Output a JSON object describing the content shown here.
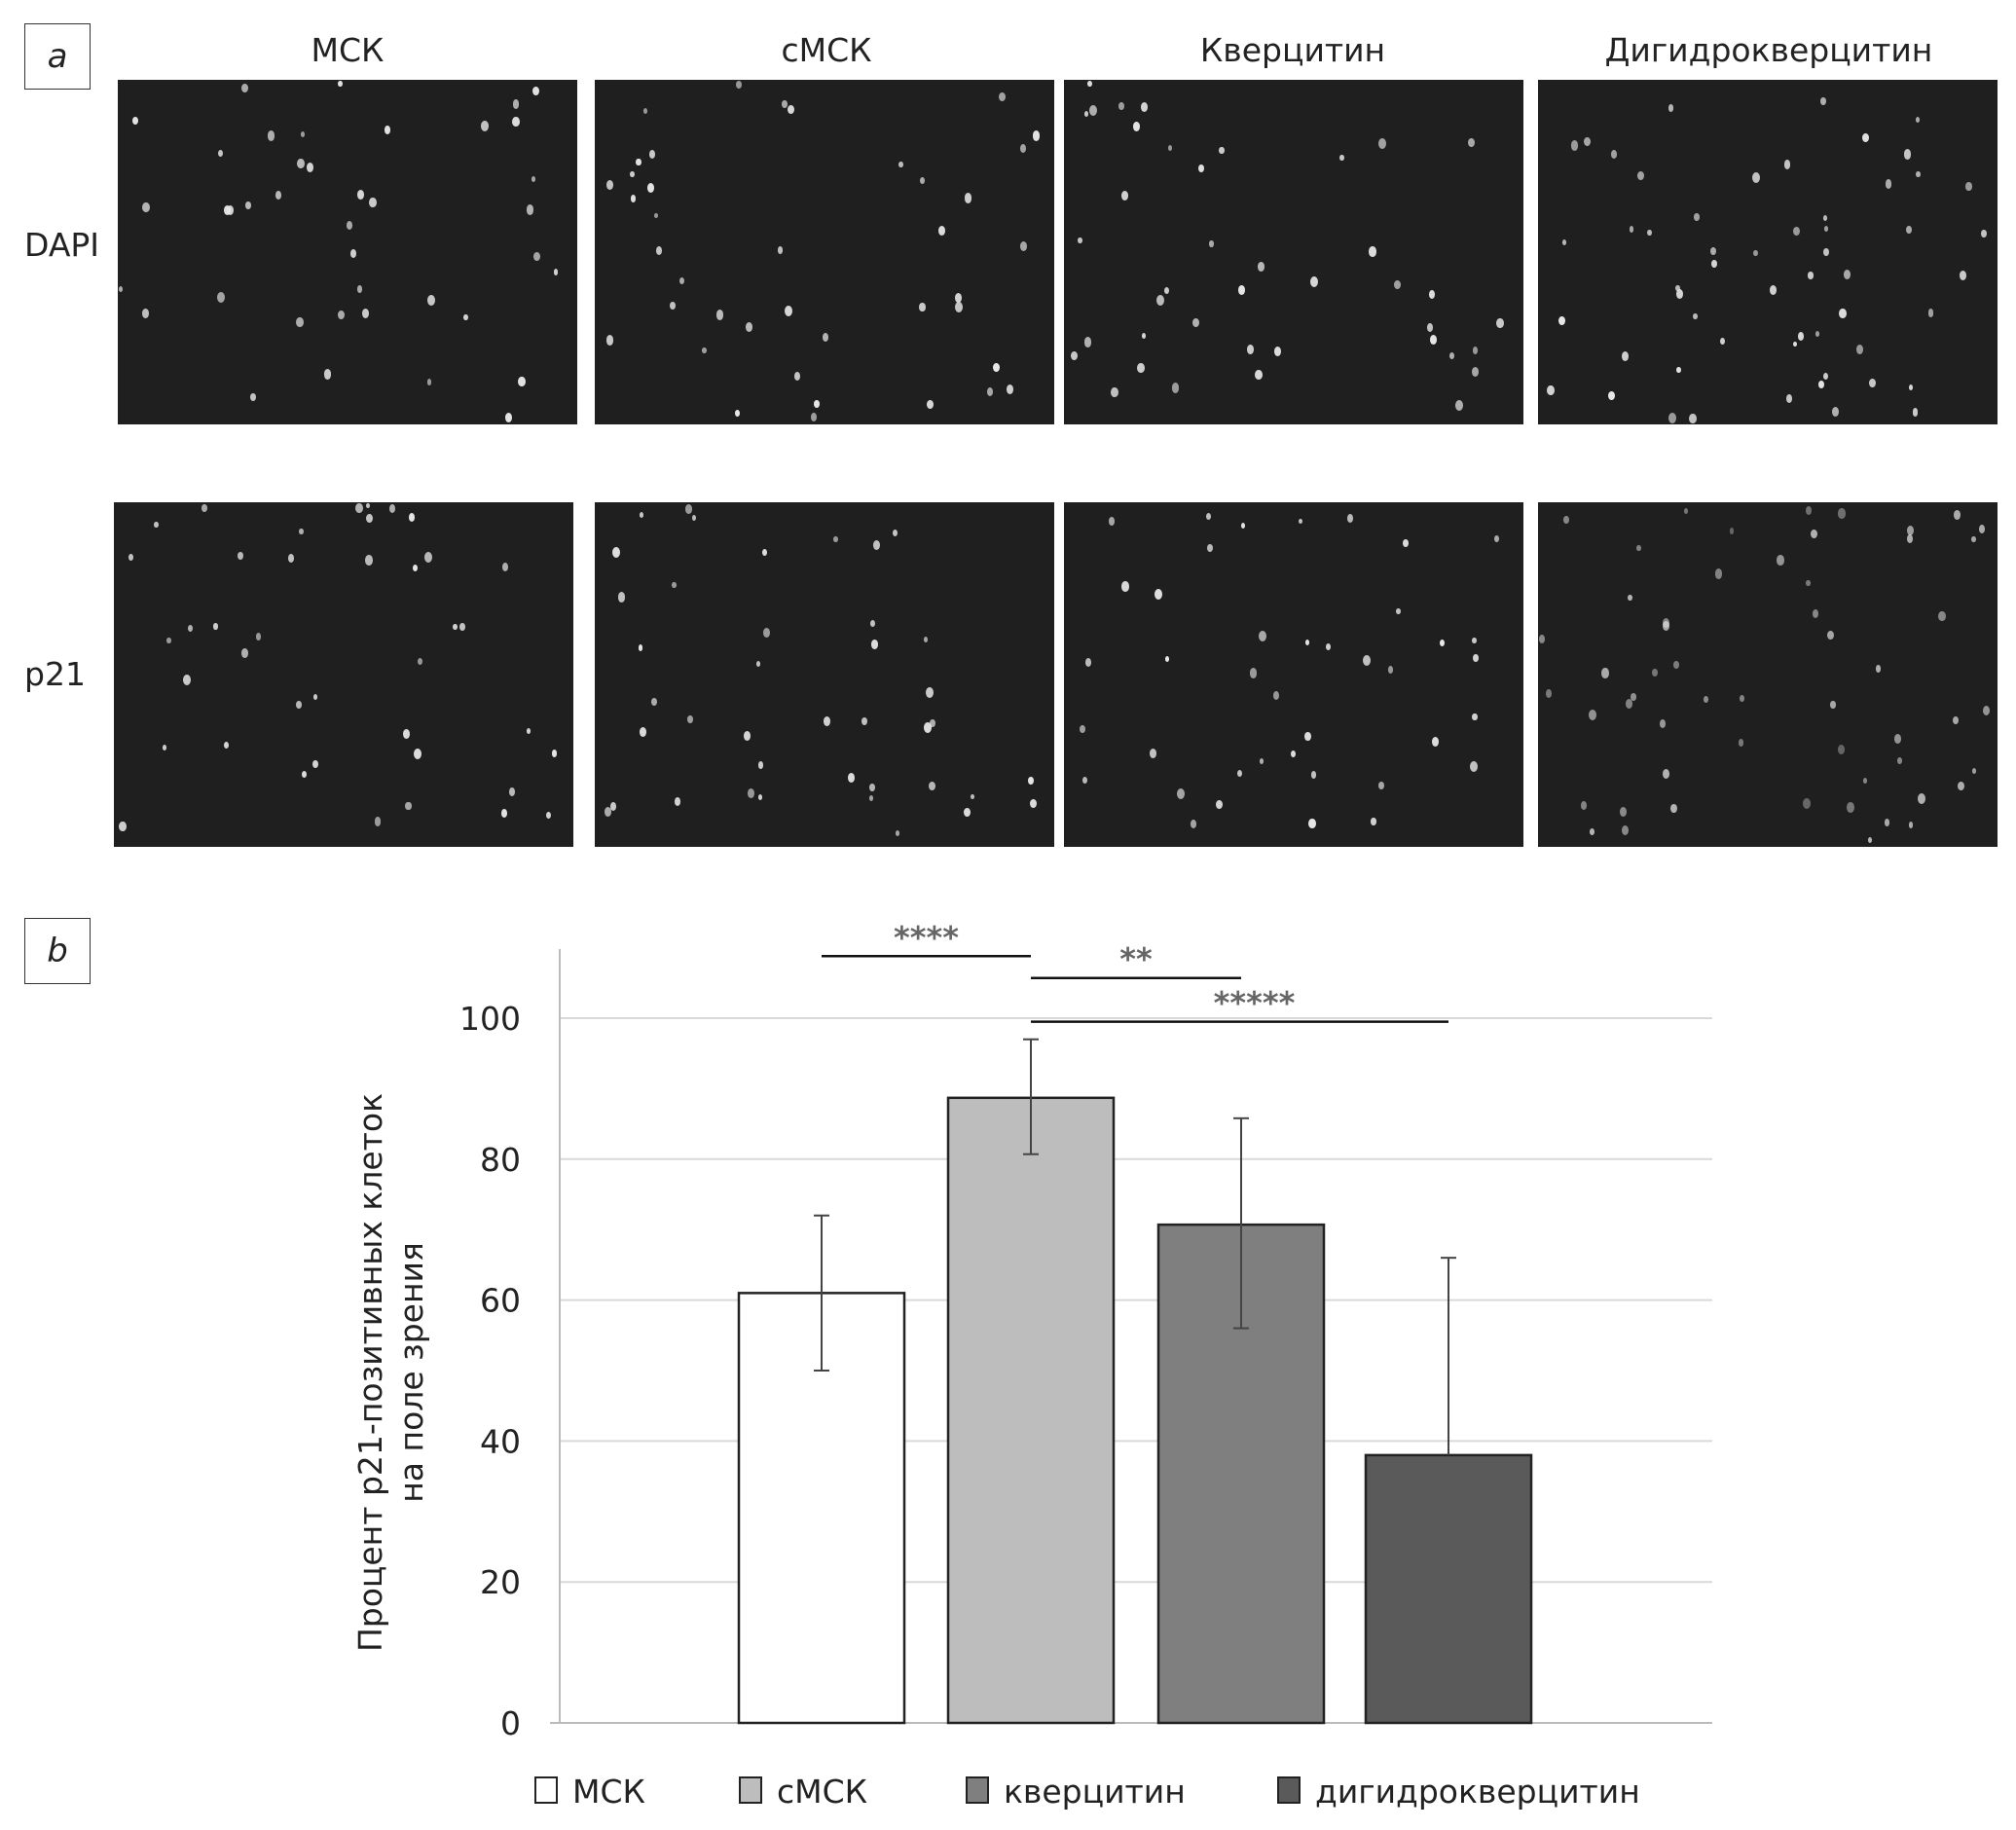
{
  "panel_a": {
    "label": "a",
    "columns": [
      "МСК",
      "сМСК",
      "Кверцитин",
      "Дигидрокверцитин"
    ],
    "rows": [
      "DAPI",
      "p21"
    ]
  },
  "panel_b": {
    "label": "b"
  },
  "chart_data": {
    "type": "bar",
    "categories": [
      "МСК",
      "сМСК",
      "кверцитин",
      "дигидрокверцитин"
    ],
    "values": [
      61,
      88.7,
      70.7,
      38
    ],
    "error_low": [
      50,
      80.7,
      56,
      null
    ],
    "error_high": [
      72,
      97,
      85.8,
      66
    ],
    "colors": [
      "#ffffff",
      "#bdbdbd",
      "#7f7f7f",
      "#5a5a5a"
    ],
    "ylabel": "Процент p21-позитивных клеток на поле зрения",
    "ylabel_lines": [
      "Процент p21-позитивных клеток",
      "на поле зрения"
    ],
    "ylim": [
      0,
      110
    ],
    "yticks": [
      0,
      20,
      40,
      60,
      80,
      100
    ],
    "grid": true,
    "legend": "bottom",
    "significance": [
      {
        "from": 0,
        "to": 1,
        "level": 108.8,
        "label": "****"
      },
      {
        "from": 1,
        "to": 2,
        "level": 105.7,
        "label": "**"
      },
      {
        "from": 1,
        "to": 3,
        "level": 99.5,
        "label": "*****"
      }
    ]
  }
}
